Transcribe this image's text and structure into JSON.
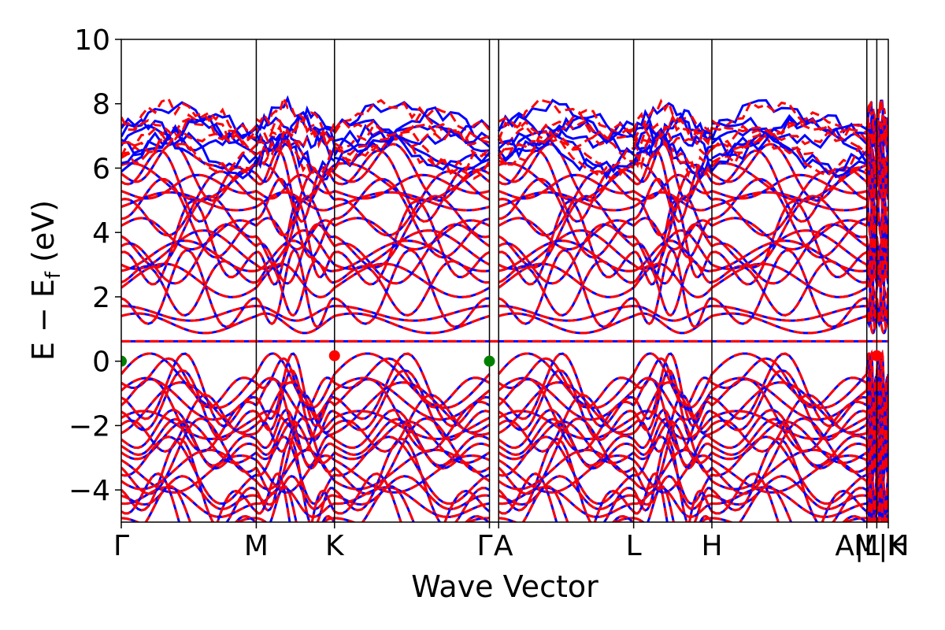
{
  "chart_data": {
    "type": "line",
    "xlabel": "Wave Vector",
    "ylabel_main": "E − E",
    "ylabel_sub": "f",
    "ylabel_unit": " (eV)",
    "ylim": [
      -5,
      10
    ],
    "xlim": [
      0,
      1
    ],
    "yticks": [
      {
        "value": -4,
        "label": "−4"
      },
      {
        "value": -2,
        "label": "−2"
      },
      {
        "value": 0,
        "label": "0"
      },
      {
        "value": 2,
        "label": "2"
      },
      {
        "value": 4,
        "label": "4"
      },
      {
        "value": 6,
        "label": "6"
      },
      {
        "value": 8,
        "label": "8"
      },
      {
        "value": 10,
        "label": "10"
      }
    ],
    "kpoints": [
      {
        "position": 0.0,
        "label": "Γ"
      },
      {
        "position": 0.176,
        "label": "M"
      },
      {
        "position": 0.278,
        "label": "K"
      },
      {
        "position": 0.48,
        "label": "Γ"
      },
      {
        "position": 0.492,
        "label": "A"
      },
      {
        "position": 0.668,
        "label": "L"
      },
      {
        "position": 0.77,
        "label": "H"
      },
      {
        "position": 0.972,
        "label": "A|L"
      },
      {
        "position": 0.985,
        "label": "M|H"
      },
      {
        "position": 1.0,
        "label": "K"
      }
    ],
    "series": [
      {
        "color": "#0000ff",
        "style": "solid"
      },
      {
        "color": "#ff0000",
        "style": "dashed"
      }
    ],
    "markers": [
      {
        "x": 0.0,
        "y": 0.0,
        "color": "#008000"
      },
      {
        "x": 0.48,
        "y": 0.0,
        "color": "#008000"
      },
      {
        "x": 0.278,
        "y": 0.17,
        "color": "#ff0000"
      },
      {
        "x": 0.985,
        "y": 0.17,
        "color": "#ff0000"
      }
    ],
    "flat_band": 0.62
  }
}
